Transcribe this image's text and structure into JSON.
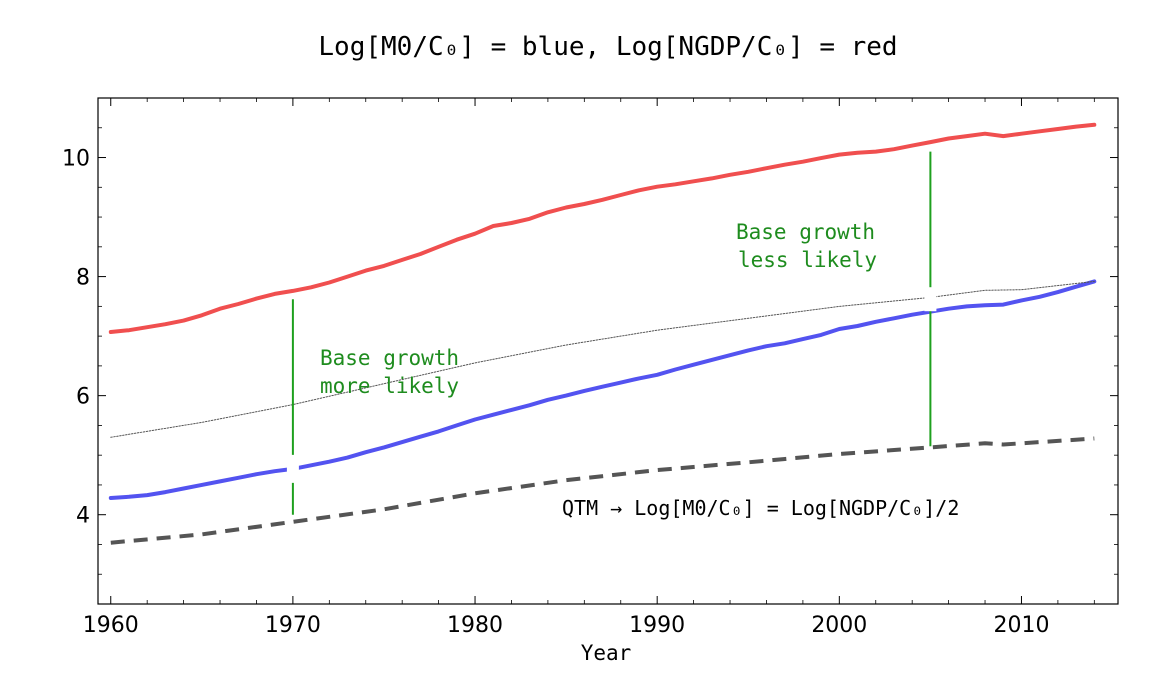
{
  "chart_data": {
    "type": "line",
    "title": "Log[M0/C₀] = blue, Log[NGDP/C₀] = red",
    "xlabel": "Year",
    "ylabel": "",
    "xlim": [
      1959.3,
      2015.3
    ],
    "ylim": [
      2.5,
      11.0
    ],
    "xticks": [
      1960,
      1970,
      1980,
      1990,
      2000,
      2010
    ],
    "yticks": [
      4,
      6,
      8,
      10
    ],
    "grid": false,
    "legend": "none",
    "series": [
      {
        "name": "Log[NGDP/C₀]",
        "color": "#f04f4f",
        "style": "solid",
        "x": [
          1960,
          1961,
          1962,
          1963,
          1964,
          1965,
          1966,
          1967,
          1968,
          1969,
          1970,
          1971,
          1972,
          1973,
          1974,
          1975,
          1976,
          1977,
          1978,
          1979,
          1980,
          1981,
          1982,
          1983,
          1984,
          1985,
          1986,
          1987,
          1988,
          1989,
          1990,
          1991,
          1992,
          1993,
          1994,
          1995,
          1996,
          1997,
          1998,
          1999,
          2000,
          2001,
          2002,
          2003,
          2004,
          2005,
          2006,
          2007,
          2008,
          2009,
          2010,
          2011,
          2012,
          2013,
          2014
        ],
        "values": [
          7.07,
          7.1,
          7.15,
          7.2,
          7.26,
          7.35,
          7.46,
          7.54,
          7.63,
          7.71,
          7.76,
          7.82,
          7.9,
          8.0,
          8.1,
          8.18,
          8.28,
          8.38,
          8.5,
          8.62,
          8.72,
          8.85,
          8.9,
          8.97,
          9.08,
          9.16,
          9.22,
          9.29,
          9.37,
          9.45,
          9.51,
          9.55,
          9.6,
          9.65,
          9.71,
          9.76,
          9.82,
          9.88,
          9.93,
          9.99,
          10.05,
          10.08,
          10.1,
          10.14,
          10.2,
          10.26,
          10.32,
          10.36,
          10.4,
          10.36,
          10.4,
          10.44,
          10.48,
          10.52,
          10.55
        ]
      },
      {
        "name": "Log[M0/C₀]",
        "color": "#5353f0",
        "style": "solid",
        "x": [
          1960,
          1961,
          1962,
          1963,
          1964,
          1965,
          1966,
          1967,
          1968,
          1969,
          1970,
          1971,
          1972,
          1973,
          1974,
          1975,
          1976,
          1977,
          1978,
          1979,
          1980,
          1981,
          1982,
          1983,
          1984,
          1985,
          1986,
          1987,
          1988,
          1989,
          1990,
          1991,
          1992,
          1993,
          1994,
          1995,
          1996,
          1997,
          1998,
          1999,
          2000,
          2001,
          2002,
          2003,
          2004,
          2005,
          2006,
          2007,
          2008,
          2009,
          2010,
          2011,
          2012,
          2013,
          2014
        ],
        "values": [
          4.28,
          4.3,
          4.33,
          4.38,
          4.44,
          4.5,
          4.56,
          4.62,
          4.68,
          4.73,
          4.77,
          4.83,
          4.89,
          4.96,
          5.05,
          5.13,
          5.22,
          5.31,
          5.4,
          5.5,
          5.6,
          5.68,
          5.76,
          5.84,
          5.93,
          6.0,
          6.08,
          6.15,
          6.22,
          6.29,
          6.35,
          6.44,
          6.52,
          6.6,
          6.68,
          6.76,
          6.83,
          6.88,
          6.95,
          7.02,
          7.12,
          7.17,
          7.24,
          7.3,
          7.36,
          7.41,
          7.46,
          7.5,
          7.52,
          7.53,
          7.6,
          7.66,
          7.74,
          7.83,
          7.92
        ]
      },
      {
        "name": "Log[NGDP/C₀]/2",
        "color": "#555555",
        "style": "dashed",
        "x": [
          1960,
          1965,
          1970,
          1975,
          1980,
          1985,
          1990,
          1995,
          2000,
          2005,
          2008,
          2009,
          2014
        ],
        "values": [
          3.53,
          3.67,
          3.88,
          4.09,
          4.36,
          4.58,
          4.75,
          4.88,
          5.02,
          5.13,
          5.2,
          5.18,
          5.28
        ]
      },
      {
        "name": "Log[M0/C₀] trend",
        "color": "#555555",
        "style": "dotted",
        "x": [
          1960,
          1961,
          1965,
          1970,
          1975,
          1980,
          1985,
          1990,
          1995,
          2000,
          2005,
          2008,
          2010,
          2014
        ],
        "values": [
          5.3,
          5.35,
          5.55,
          5.85,
          6.2,
          6.55,
          6.85,
          7.1,
          7.3,
          7.5,
          7.65,
          7.77,
          7.78,
          7.92
        ]
      }
    ],
    "annotations": [
      {
        "text_lines": [
          "Base growth",
          "more likely"
        ],
        "color": "#1e8c1e"
      },
      {
        "text_lines": [
          "Base growth",
          "less likely"
        ],
        "color": "#1e8c1e"
      },
      {
        "text": "QTM → Log[M0/C₀] = Log[NGDP/C₀]/2",
        "color": "#000000"
      }
    ],
    "markers": [
      {
        "x": 1970,
        "y_from": 4.0,
        "y_to": 7.62,
        "color": "#1ea01e"
      },
      {
        "x": 2005,
        "y_from": 5.15,
        "y_to": 10.1,
        "color": "#1ea01e"
      }
    ]
  }
}
